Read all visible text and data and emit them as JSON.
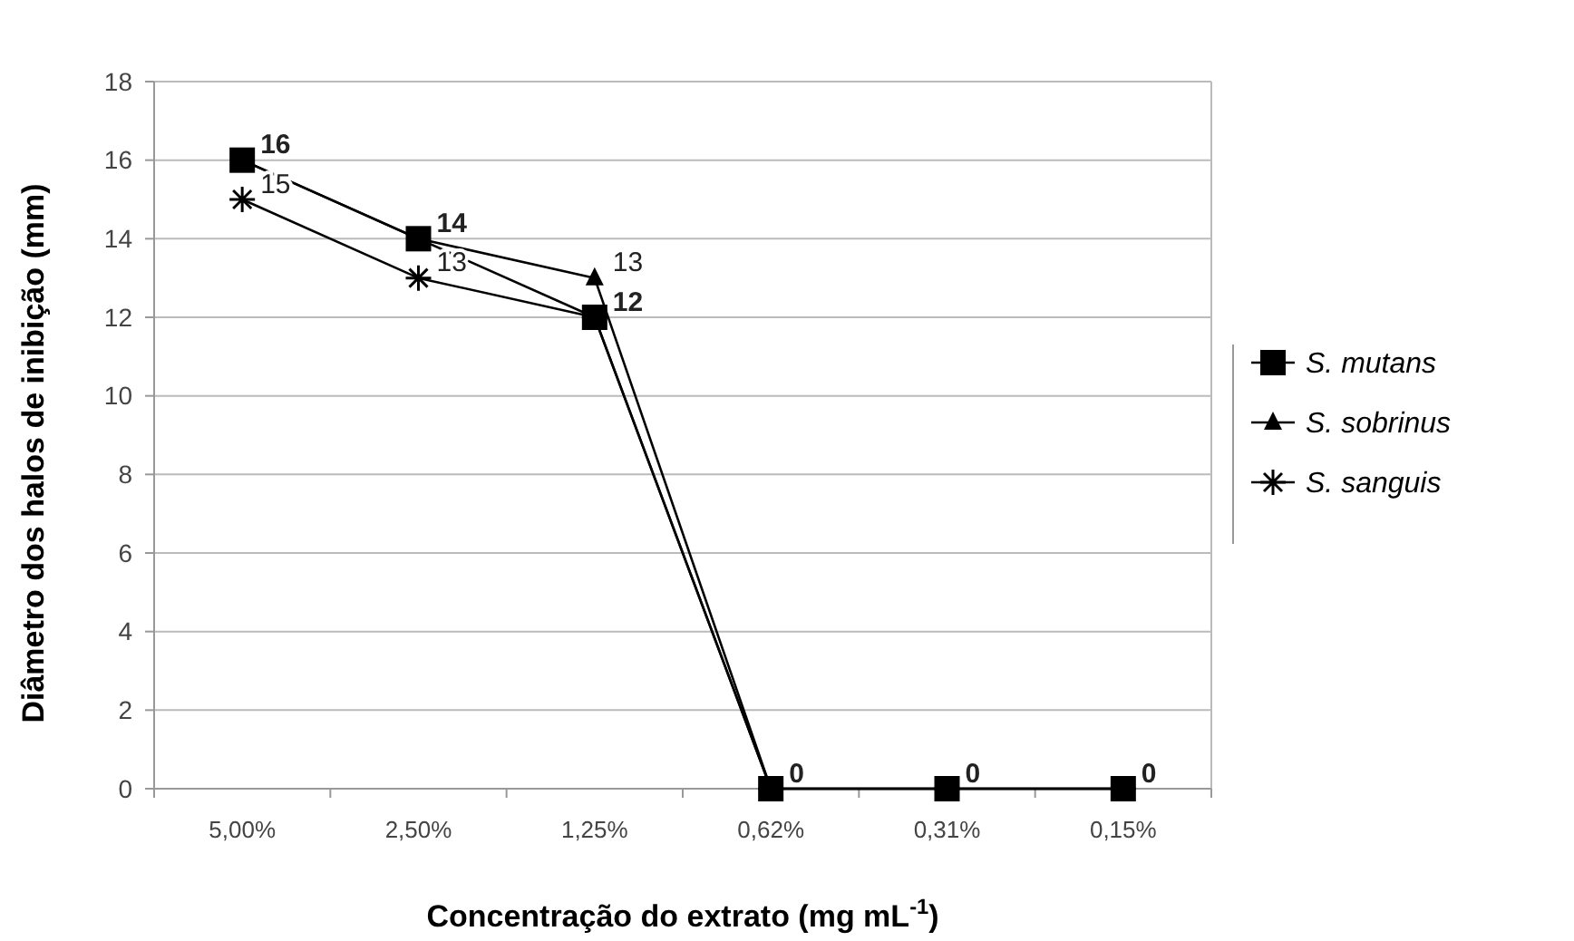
{
  "chart_data": {
    "type": "line",
    "xlabel": "Concentração do extrato (mg mL$^{-1}$)",
    "ylabel": "Diâmetro dos halos de inibição (mm)",
    "categories": [
      "5,00%",
      "2,50%",
      "1,25%",
      "0,62%",
      "0,31%",
      "0,15%"
    ],
    "ylim": [
      0,
      18
    ],
    "yticks": [
      {
        "value": 0,
        "label": "0"
      },
      {
        "value": 2,
        "label": "2"
      },
      {
        "value": 4,
        "label": "4"
      },
      {
        "value": 6,
        "label": "6"
      },
      {
        "value": 8,
        "label": "8"
      },
      10,
      12,
      14,
      16,
      18
    ],
    "grid": "y",
    "legend": "right",
    "series": [
      {
        "name": "S. mutans",
        "color": "#000000",
        "marker": "square",
        "values": [
          16,
          14,
          12,
          0,
          0,
          0
        ],
        "value_labels": [
          "16",
          "14",
          "12",
          "0",
          "0",
          "0"
        ]
      },
      {
        "name": "S. sobrinus",
        "color": "#000000",
        "marker": "triangle",
        "values": [
          16,
          14,
          13,
          0,
          0,
          0
        ],
        "value_labels": [
          null,
          null,
          "13",
          null,
          null,
          null
        ]
      },
      {
        "name": "S. sanguis",
        "color": "#000000",
        "marker": "cross",
        "values": [
          15,
          13,
          12,
          0,
          0,
          0
        ],
        "value_labels": [
          "15",
          "13",
          null,
          null,
          null,
          null
        ]
      }
    ]
  }
}
